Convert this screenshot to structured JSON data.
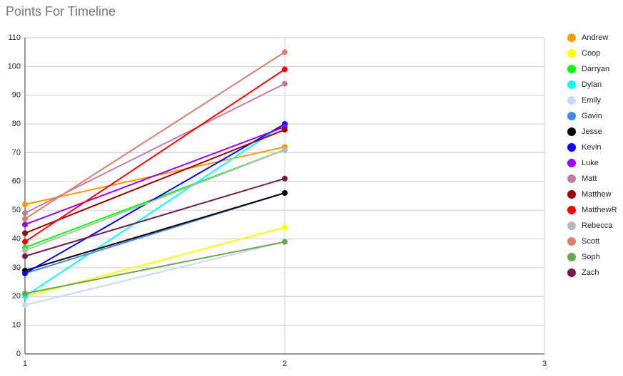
{
  "chart_data": {
    "type": "line",
    "title": "Points For Timeline",
    "x": [
      1,
      2
    ],
    "xlim": [
      1,
      3
    ],
    "xticks": [
      1,
      2,
      3
    ],
    "ylim": [
      0,
      110
    ],
    "yticks": [
      0,
      10,
      20,
      30,
      40,
      50,
      60,
      70,
      80,
      90,
      100,
      110
    ],
    "grid": true,
    "legend": "right",
    "series": [
      {
        "name": "Andrew",
        "color": "#ff9900",
        "values": [
          52,
          72
        ]
      },
      {
        "name": "Coop",
        "color": "#ffff00",
        "values": [
          20,
          44
        ]
      },
      {
        "name": "Darryan",
        "color": "#00ff00",
        "values": [
          37,
          71
        ]
      },
      {
        "name": "Dylan",
        "color": "#00ffff",
        "values": [
          20,
          80
        ]
      },
      {
        "name": "Emily",
        "color": "#c9daf8",
        "values": [
          17,
          39
        ]
      },
      {
        "name": "Gavin",
        "color": "#4a86e8",
        "values": [
          28,
          56
        ]
      },
      {
        "name": "Jesse",
        "color": "#000000",
        "values": [
          29,
          56
        ]
      },
      {
        "name": "Kevin",
        "color": "#0000ff",
        "values": [
          28,
          80
        ]
      },
      {
        "name": "Luke",
        "color": "#9900ff",
        "values": [
          45,
          79
        ]
      },
      {
        "name": "Matt",
        "color": "#c27ba0",
        "values": [
          49,
          94
        ]
      },
      {
        "name": "Matthew",
        "color": "#990000",
        "values": [
          42,
          78
        ]
      },
      {
        "name": "MatthewR",
        "color": "#ff0000",
        "values": [
          39,
          99
        ]
      },
      {
        "name": "Rebecca",
        "color": "#b7b7b7",
        "values": [
          36,
          71
        ]
      },
      {
        "name": "Scott",
        "color": "#dd7e6b",
        "values": [
          47,
          105
        ]
      },
      {
        "name": "Soph",
        "color": "#6aa84f",
        "values": [
          21,
          39
        ]
      },
      {
        "name": "Zach",
        "color": "#741b47",
        "values": [
          34,
          61
        ]
      }
    ]
  }
}
